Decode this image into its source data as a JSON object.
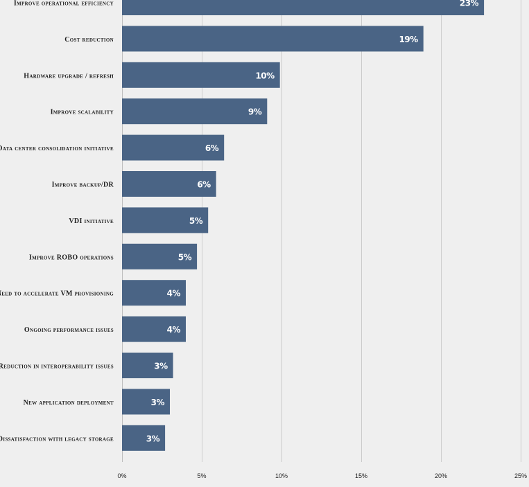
{
  "chart_data": {
    "type": "bar",
    "orientation": "horizontal",
    "categories": [
      "Improve operational efficiency",
      "Cost reduction",
      "Hardware upgrade / refresh",
      "Improve scalability",
      "Data center consolidation initiative",
      "Improve backup/DR",
      "VDI initiative",
      "Improve ROBO operations",
      "Need to accelerate VM provisioning",
      "Ongoing performance issues",
      "Reduction in interoperability issues",
      "New application deployment",
      "Dissatisfaction with legacy storage"
    ],
    "values": [
      22.7,
      18.9,
      9.9,
      9.1,
      6.4,
      5.9,
      5.4,
      4.7,
      4.0,
      4.0,
      3.2,
      3.0,
      2.7
    ],
    "value_labels": [
      "23%",
      "19%",
      "10%",
      "9%",
      "6%",
      "6%",
      "5%",
      "5%",
      "4%",
      "4%",
      "3%",
      "3%",
      "3%"
    ],
    "xlim": [
      0,
      25
    ],
    "xticks": [
      0,
      5,
      10,
      15,
      20,
      25
    ],
    "xtick_labels": [
      "0%",
      "5%",
      "10%",
      "15%",
      "20%",
      "25%"
    ],
    "grid": true,
    "colors": {
      "bar": "#4a6485",
      "background": "#efefef",
      "value_text": "#ffffff"
    }
  }
}
